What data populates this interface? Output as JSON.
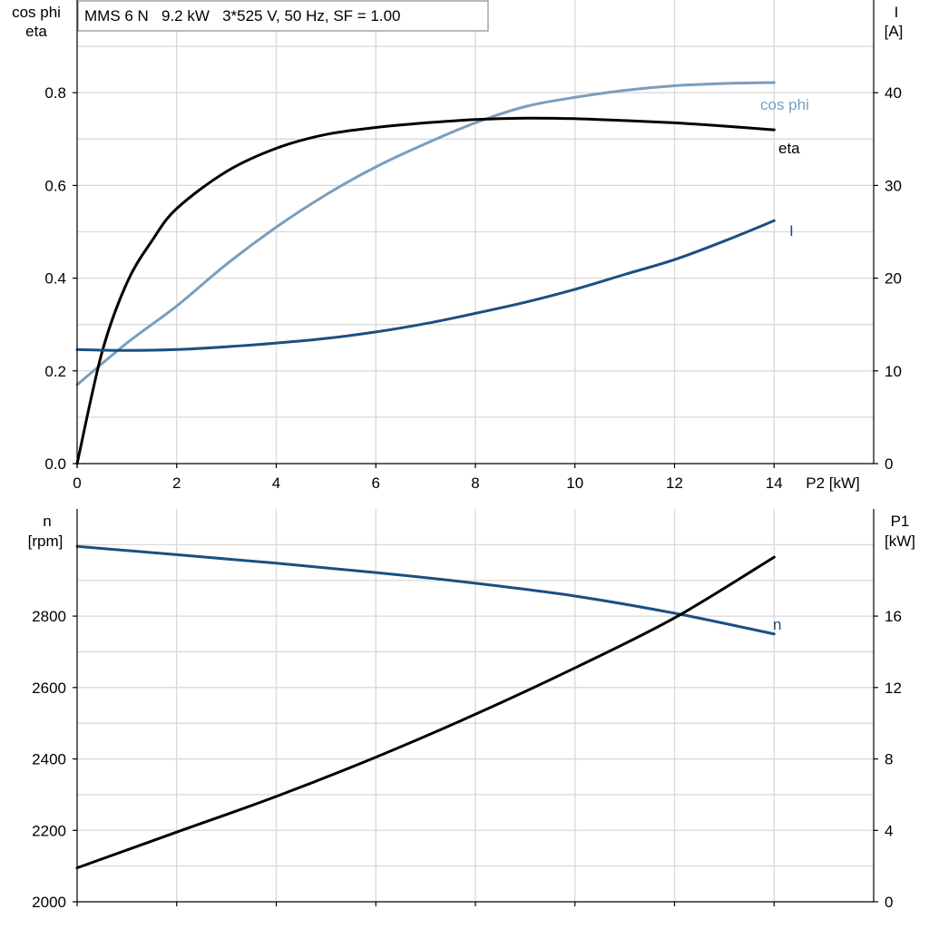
{
  "title": "MMS 6 N   9.2 kW   3*525 V, 50 Hz, SF = 1.00",
  "colors": {
    "cos_phi": "#7a9ebd",
    "eta": "#000000",
    "current": "#1b4f82",
    "speed": "#1b4f82",
    "p1": "#000000",
    "grid": "#d9d9d9"
  },
  "chart_data": [
    {
      "type": "line",
      "x_axis": {
        "label": "P2 [kW]",
        "range": [
          0,
          16
        ],
        "ticks": [
          0,
          2,
          4,
          6,
          8,
          10,
          12,
          14
        ]
      },
      "left_axis": {
        "label_line1": "cos phi",
        "label_line2": "eta",
        "range": [
          0,
          1.0
        ],
        "ticks": [
          0.0,
          0.2,
          0.4,
          0.6,
          0.8
        ],
        "tick_labels": [
          "0.0",
          "0.2",
          "0.4",
          "0.6",
          "0.8"
        ]
      },
      "right_axis": {
        "label_line1": "I",
        "label_line2": "[A]",
        "range": [
          0,
          50
        ],
        "ticks": [
          0,
          10,
          20,
          30,
          40
        ],
        "tick_labels": [
          "0",
          "10",
          "20",
          "30",
          "40"
        ]
      },
      "grid": true,
      "series": [
        {
          "name": "cos phi",
          "axis": "left",
          "color": "#7a9ebd",
          "x": [
            0,
            1,
            2,
            3,
            4,
            5,
            6,
            7,
            8,
            9,
            10,
            11,
            12,
            13,
            14
          ],
          "y": [
            0.17,
            0.26,
            0.34,
            0.43,
            0.51,
            0.58,
            0.64,
            0.69,
            0.735,
            0.77,
            0.79,
            0.805,
            0.815,
            0.82,
            0.822
          ]
        },
        {
          "name": "eta",
          "axis": "left",
          "color": "#000000",
          "x": [
            0,
            0.5,
            1,
            1.5,
            2,
            3,
            4,
            5,
            6,
            7,
            8,
            9,
            10,
            11,
            12,
            13,
            14
          ],
          "y": [
            0.0,
            0.24,
            0.39,
            0.48,
            0.55,
            0.63,
            0.68,
            0.71,
            0.725,
            0.735,
            0.742,
            0.745,
            0.744,
            0.74,
            0.735,
            0.728,
            0.72
          ]
        },
        {
          "name": "I",
          "axis": "right",
          "color": "#1b4f82",
          "x": [
            0,
            1,
            2,
            3,
            4,
            5,
            6,
            7,
            8,
            9,
            10,
            11,
            12,
            13,
            14
          ],
          "y": [
            12.3,
            12.2,
            12.3,
            12.6,
            13.0,
            13.5,
            14.2,
            15.1,
            16.2,
            17.4,
            18.8,
            20.4,
            22.0,
            24.0,
            26.2
          ]
        }
      ]
    },
    {
      "type": "line",
      "x_axis": {
        "range": [
          0,
          16
        ],
        "ticks": [
          0,
          2,
          4,
          6,
          8,
          10,
          12,
          14
        ]
      },
      "left_axis": {
        "label_line1": "n",
        "label_line2": "[rpm]",
        "range": [
          2000,
          3100
        ],
        "ticks": [
          2000,
          2200,
          2400,
          2600,
          2800
        ],
        "tick_labels": [
          "2000",
          "2200",
          "2400",
          "2600",
          "2800"
        ]
      },
      "right_axis": {
        "label_line1": "P1",
        "label_line2": "[kW]",
        "range": [
          0,
          22
        ],
        "ticks": [
          0,
          4,
          8,
          12,
          16
        ],
        "tick_labels": [
          "0",
          "4",
          "8",
          "12",
          "16"
        ]
      },
      "grid": true,
      "series": [
        {
          "name": "n",
          "axis": "left",
          "color": "#1b4f82",
          "x": [
            0,
            2,
            4,
            6,
            8,
            10,
            12,
            14
          ],
          "y": [
            2995,
            2972,
            2948,
            2922,
            2892,
            2856,
            2808,
            2750
          ]
        },
        {
          "name": "",
          "axis": "right",
          "color": "#000000",
          "x": [
            0,
            2,
            4,
            6,
            8,
            10,
            12,
            14
          ],
          "y": [
            1.9,
            3.9,
            5.9,
            8.1,
            10.5,
            13.1,
            15.9,
            19.3
          ]
        }
      ]
    }
  ]
}
